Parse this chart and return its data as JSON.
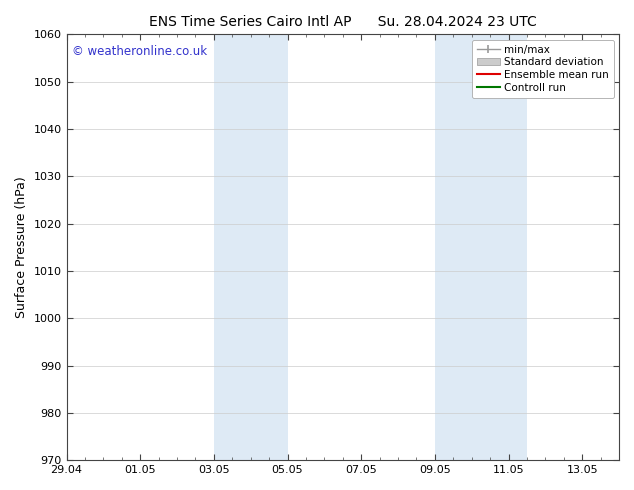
{
  "title_left": "ENS Time Series Cairo Intl AP",
  "title_right": "Su. 28.04.2024 23 UTC",
  "ylabel": "Surface Pressure (hPa)",
  "ylim": [
    970,
    1060
  ],
  "yticks": [
    970,
    980,
    990,
    1000,
    1010,
    1020,
    1030,
    1040,
    1050,
    1060
  ],
  "xtick_positions": [
    0,
    2,
    4,
    6,
    8,
    10,
    12,
    14
  ],
  "xtick_labels": [
    "29.04",
    "01.05",
    "03.05",
    "05.05",
    "07.05",
    "09.05",
    "11.05",
    "13.05"
  ],
  "xlim": [
    0,
    15
  ],
  "shaded_regions": [
    {
      "xstart": 4.0,
      "xend": 6.0
    },
    {
      "xstart": 10.0,
      "xend": 12.5
    }
  ],
  "shaded_color": "#deeaf5",
  "copyright_text": "© weatheronline.co.uk",
  "copyright_color": "#3333cc",
  "legend_items": [
    {
      "label": "min/max",
      "color": "#999999",
      "type": "minmax"
    },
    {
      "label": "Standard deviation",
      "color": "#cccccc",
      "type": "band"
    },
    {
      "label": "Ensemble mean run",
      "color": "#dd0000",
      "type": "line"
    },
    {
      "label": "Controll run",
      "color": "#007700",
      "type": "line"
    }
  ],
  "background_color": "#ffffff",
  "grid_color": "#cccccc",
  "title_fontsize": 10,
  "ylabel_fontsize": 9,
  "tick_fontsize": 8,
  "legend_fontsize": 7.5,
  "copyright_fontsize": 8.5
}
